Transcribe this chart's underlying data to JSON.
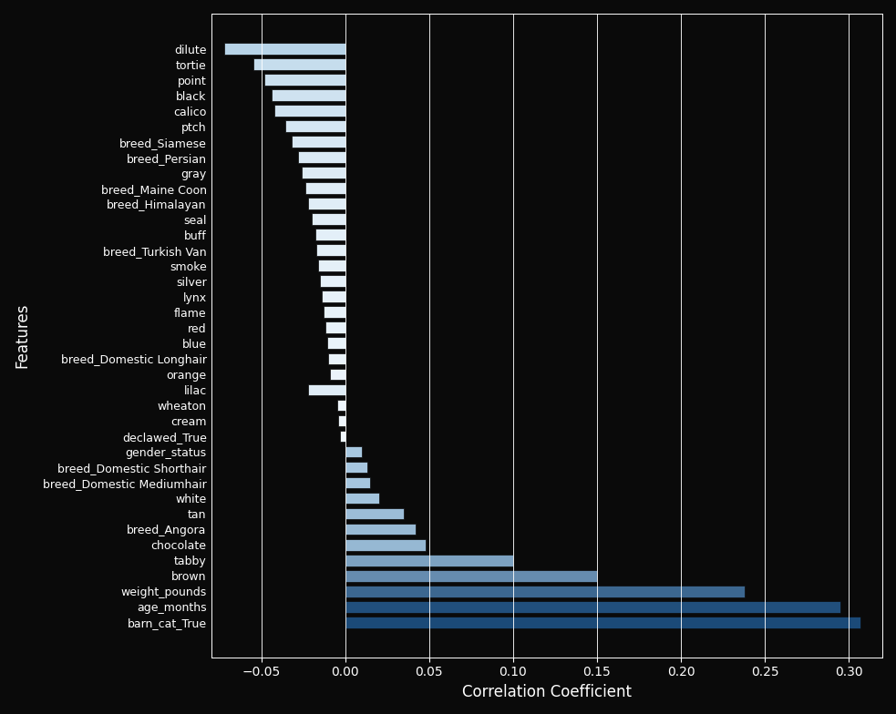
{
  "features": [
    "dilute",
    "tortie",
    "point",
    "black",
    "calico",
    "ptch",
    "breed_Siamese",
    "breed_Persian",
    "gray",
    "breed_Maine Coon",
    "breed_Himalayan",
    "seal",
    "buff",
    "breed_Turkish Van",
    "smoke",
    "silver",
    "lynx",
    "flame",
    "red",
    "blue",
    "breed_Domestic Longhair",
    "orange",
    "lilac",
    "wheaton",
    "cream",
    "declawed_True",
    "gender_status",
    "breed_Domestic Shorthair",
    "breed_Domestic Mediumhair",
    "white",
    "tan",
    "breed_Angora",
    "chocolate",
    "tabby",
    "brown",
    "weight_pounds",
    "age_months",
    "barn_cat_True"
  ],
  "values": [
    -0.072,
    -0.055,
    -0.048,
    -0.044,
    -0.042,
    -0.036,
    -0.032,
    -0.028,
    -0.026,
    -0.024,
    -0.022,
    -0.02,
    -0.018,
    -0.017,
    -0.016,
    -0.015,
    -0.014,
    -0.013,
    -0.012,
    -0.011,
    -0.01,
    -0.009,
    -0.022,
    -0.005,
    -0.004,
    -0.003,
    0.01,
    0.013,
    0.015,
    0.02,
    0.035,
    0.042,
    0.048,
    0.1,
    0.15,
    0.238,
    0.295,
    0.307
  ],
  "xlabel": "Correlation Coefficient",
  "ylabel": "Features",
  "xlim": [
    -0.08,
    0.32
  ],
  "xticks": [
    -0.05,
    0.0,
    0.05,
    0.1,
    0.15,
    0.2,
    0.25,
    0.3
  ],
  "background_color": "#0a0a0a",
  "text_color": "#ffffff",
  "grid_color": "#ffffff"
}
